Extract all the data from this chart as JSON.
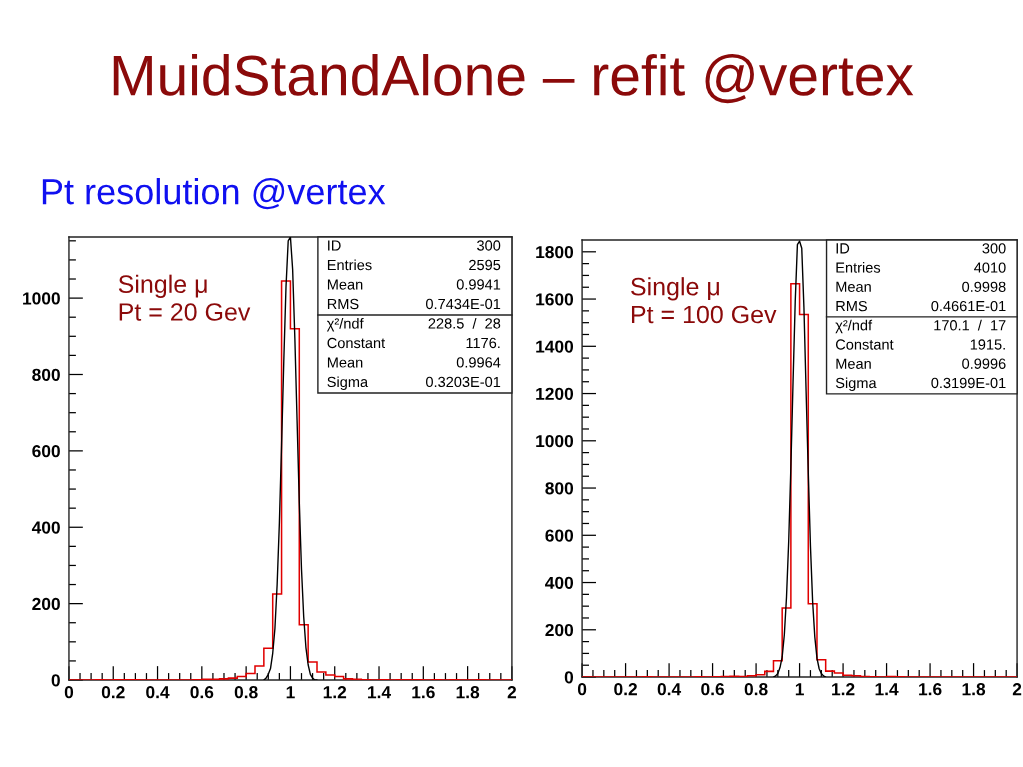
{
  "chart_data": [
    {
      "type": "histogram",
      "title": "MuidStandAlone – refit @vertex",
      "subtitle": "Pt resolution @vertex",
      "series": [
        {
          "color": "#e00000",
          "bins": [
            0,
            0.04,
            0.08,
            0.12,
            0.16,
            0.2,
            0.24,
            0.28,
            0.32,
            0.36,
            0.4,
            0.44,
            0.48,
            0.52,
            0.56,
            0.6,
            0.64,
            0.68,
            0.72,
            0.76,
            0.8,
            0.84,
            0.88,
            0.92,
            0.96,
            1,
            1.04,
            1.08,
            1.12,
            1.16,
            1.2,
            1.24,
            1.28,
            1.32,
            1.36,
            1.4,
            1.44,
            1.48,
            1.52,
            1.56,
            1.6,
            1.64,
            1.68,
            1.72,
            1.76,
            1.8,
            1.84,
            1.88,
            1.92,
            1.96,
            2
          ],
          "values": [
            0,
            0,
            0,
            1,
            0,
            1,
            1,
            1,
            0,
            0,
            0,
            0,
            0,
            0,
            1,
            2,
            2,
            3,
            5,
            9,
            17,
            37,
            83,
            225,
            1045,
            920,
            145,
            47,
            21,
            13,
            9,
            3,
            2,
            1,
            0,
            1,
            0,
            1,
            1,
            1,
            0,
            1,
            0,
            1,
            0,
            0,
            1,
            0,
            0,
            0
          ]
        },
        {
          "type": "line",
          "color": "#000000",
          "x": [
            0.88,
            0.89,
            0.9,
            0.91,
            0.92,
            0.93,
            0.94,
            0.95,
            0.96,
            0.97,
            0.98,
            0.99,
            1,
            1.01,
            1.02,
            1.03,
            1.04,
            1.05,
            1.06,
            1.07,
            1.08,
            1.09,
            1.1,
            1.11,
            1.12
          ],
          "values": [
            0,
            5,
            15,
            30,
            70,
            135,
            250,
            410,
            615,
            835,
            1030,
            1150,
            1160,
            1075,
            895,
            680,
            465,
            290,
            165,
            85,
            40,
            15,
            5,
            0,
            0
          ]
        }
      ],
      "xlim": [
        0,
        2
      ],
      "ylim": [
        0,
        1160
      ],
      "xticks": [
        0,
        {
          "value": 0.05,
          "label": null
        },
        {
          "value": 0.1,
          "label": null
        },
        {
          "value": 0.15,
          "label": null
        },
        0.2,
        {
          "value": 0.25,
          "label": null
        },
        {
          "value": 0.3,
          "label": null
        },
        {
          "value": 0.35,
          "label": null
        },
        0.4,
        {
          "value": 0.45,
          "label": null
        },
        {
          "value": 0.5,
          "label": null
        },
        {
          "value": 0.55,
          "label": null
        },
        0.6,
        {
          "value": 0.65,
          "label": null
        },
        {
          "value": 0.7,
          "label": null
        },
        {
          "value": 0.75,
          "label": null
        },
        0.8,
        {
          "value": 0.85,
          "label": null
        },
        {
          "value": 0.9,
          "label": null
        },
        {
          "value": 0.95,
          "label": null
        },
        1,
        {
          "value": 1.05,
          "label": null
        },
        {
          "value": 1.1,
          "label": null
        },
        {
          "value": 1.15,
          "label": null
        },
        1.2,
        {
          "value": 1.25,
          "label": null
        },
        {
          "value": 1.3,
          "label": null
        },
        {
          "value": 1.35,
          "label": null
        },
        1.4,
        {
          "value": 1.45,
          "label": null
        },
        {
          "value": 1.5,
          "label": null
        },
        {
          "value": 1.55,
          "label": null
        },
        1.6,
        {
          "value": 1.65,
          "label": null
        },
        {
          "value": 1.7,
          "label": null
        },
        {
          "value": 1.75,
          "label": null
        },
        1.8,
        {
          "value": 1.85,
          "label": null
        },
        {
          "value": 1.9,
          "label": null
        },
        {
          "value": 1.95,
          "label": null
        },
        2
      ],
      "yticks": [
        0,
        {
          "value": 50,
          "label": null
        },
        {
          "value": 100,
          "label": null
        },
        {
          "value": 150,
          "label": null
        },
        200,
        {
          "value": 250,
          "label": null
        },
        {
          "value": 300,
          "label": null
        },
        {
          "value": 350,
          "label": null
        },
        400,
        {
          "value": 450,
          "label": null
        },
        {
          "value": 500,
          "label": null
        },
        {
          "value": 550,
          "label": null
        },
        600,
        {
          "value": 650,
          "label": null
        },
        {
          "value": 700,
          "label": null
        },
        {
          "value": 750,
          "label": null
        },
        800,
        {
          "value": 850,
          "label": null
        },
        {
          "value": 900,
          "label": null
        },
        {
          "value": 950,
          "label": null
        },
        1000,
        {
          "value": 1050,
          "label": null
        },
        {
          "value": 1100,
          "label": null
        },
        {
          "value": 1150,
          "label": null
        }
      ],
      "annotations": [
        "Single μ\nPt = 20 Gev",
        "ID",
        "300",
        "Entries",
        "2595",
        "Mean",
        "0.9941",
        "RMS",
        "0.7434E-01",
        "χ²/ndf",
        "228.5  /  28",
        "Constant",
        "1176.",
        "Mean",
        "0.9964",
        "Sigma",
        "0.3203E-01"
      ]
    },
    {
      "type": "histogram",
      "series": [
        {
          "color": "#e00000",
          "bins": [
            0,
            0.04,
            0.08,
            0.12,
            0.16,
            0.2,
            0.24,
            0.28,
            0.32,
            0.36,
            0.4,
            0.44,
            0.48,
            0.52,
            0.56,
            0.6,
            0.64,
            0.68,
            0.72,
            0.76,
            0.8,
            0.84,
            0.88,
            0.92,
            0.96,
            1,
            1.04,
            1.08,
            1.12,
            1.16,
            1.2,
            1.24,
            1.28,
            1.32,
            1.36,
            1.4,
            1.44,
            1.48,
            1.52,
            1.56,
            1.6,
            1.64,
            1.68,
            1.72,
            1.76,
            1.8,
            1.84,
            1.88,
            1.92,
            1.96,
            2
          ],
          "values": [
            0,
            0,
            0,
            0,
            0,
            0,
            0,
            1,
            0,
            0,
            0,
            0,
            0,
            1,
            0,
            1,
            2,
            3,
            2,
            5,
            10,
            24,
            69,
            292,
            1665,
            1535,
            310,
            73,
            25,
            17,
            8,
            5,
            2,
            1,
            0,
            2,
            1,
            0,
            0,
            0,
            0,
            0,
            0,
            0,
            0,
            0,
            0,
            0,
            0,
            0
          ]
        },
        {
          "type": "line",
          "color": "#000000",
          "x": [
            0.88,
            0.89,
            0.9,
            0.91,
            0.92,
            0.93,
            0.94,
            0.95,
            0.96,
            0.97,
            0.98,
            0.99,
            1,
            1.01,
            1.02,
            1.03,
            1.04,
            1.05,
            1.06,
            1.07,
            1.08,
            1.09,
            1.1,
            1.11,
            1.12
          ],
          "values": [
            0,
            5,
            15,
            40,
            85,
            180,
            340,
            575,
            890,
            1250,
            1590,
            1830,
            1845,
            1815,
            1565,
            1210,
            865,
            555,
            320,
            170,
            80,
            35,
            15,
            5,
            0
          ]
        }
      ],
      "xlim": [
        0,
        2
      ],
      "ylim": [
        0,
        1850
      ],
      "xticks": [
        0,
        {
          "value": 0.05,
          "label": null
        },
        {
          "value": 0.1,
          "label": null
        },
        {
          "value": 0.15,
          "label": null
        },
        0.2,
        {
          "value": 0.25,
          "label": null
        },
        {
          "value": 0.3,
          "label": null
        },
        {
          "value": 0.35,
          "label": null
        },
        0.4,
        {
          "value": 0.45,
          "label": null
        },
        {
          "value": 0.5,
          "label": null
        },
        {
          "value": 0.55,
          "label": null
        },
        0.6,
        {
          "value": 0.65,
          "label": null
        },
        {
          "value": 0.7,
          "label": null
        },
        {
          "value": 0.75,
          "label": null
        },
        0.8,
        {
          "value": 0.85,
          "label": null
        },
        {
          "value": 0.9,
          "label": null
        },
        {
          "value": 0.95,
          "label": null
        },
        1,
        {
          "value": 1.05,
          "label": null
        },
        {
          "value": 1.1,
          "label": null
        },
        {
          "value": 1.15,
          "label": null
        },
        1.2,
        {
          "value": 1.25,
          "label": null
        },
        {
          "value": 1.3,
          "label": null
        },
        {
          "value": 1.35,
          "label": null
        },
        1.4,
        {
          "value": 1.45,
          "label": null
        },
        {
          "value": 1.5,
          "label": null
        },
        {
          "value": 1.55,
          "label": null
        },
        1.6,
        {
          "value": 1.65,
          "label": null
        },
        {
          "value": 1.7,
          "label": null
        },
        {
          "value": 1.75,
          "label": null
        },
        1.8,
        {
          "value": 1.85,
          "label": null
        },
        {
          "value": 1.9,
          "label": null
        },
        {
          "value": 1.95,
          "label": null
        },
        2
      ],
      "yticks": [
        0,
        {
          "value": 50,
          "label": null
        },
        {
          "value": 100,
          "label": null
        },
        {
          "value": 150,
          "label": null
        },
        200,
        {
          "value": 250,
          "label": null
        },
        {
          "value": 300,
          "label": null
        },
        {
          "value": 350,
          "label": null
        },
        400,
        {
          "value": 450,
          "label": null
        },
        {
          "value": 500,
          "label": null
        },
        {
          "value": 550,
          "label": null
        },
        600,
        {
          "value": 650,
          "label": null
        },
        {
          "value": 700,
          "label": null
        },
        {
          "value": 750,
          "label": null
        },
        800,
        {
          "value": 850,
          "label": null
        },
        {
          "value": 900,
          "label": null
        },
        {
          "value": 950,
          "label": null
        },
        1000,
        {
          "value": 1050,
          "label": null
        },
        {
          "value": 1100,
          "label": null
        },
        {
          "value": 1150,
          "label": null
        },
        1200,
        {
          "value": 1250,
          "label": null
        },
        {
          "value": 1300,
          "label": null
        },
        {
          "value": 1350,
          "label": null
        },
        1400,
        {
          "value": 1450,
          "label": null
        },
        {
          "value": 1500,
          "label": null
        },
        {
          "value": 1550,
          "label": null
        },
        1600,
        {
          "value": 1650,
          "label": null
        },
        {
          "value": 1700,
          "label": null
        },
        {
          "value": 1750,
          "label": null
        },
        1800
      ],
      "annotations": [
        "Single μ\nPt = 100 Gev",
        "ID",
        "300",
        "Entries",
        "4010",
        "Mean",
        "0.9998",
        "RMS",
        "0.4661E-01",
        "χ²/ndf",
        "170.1  /  17",
        "Constant",
        "1915.",
        "Mean",
        "0.9996",
        "Sigma",
        "0.3199E-01"
      ]
    }
  ]
}
